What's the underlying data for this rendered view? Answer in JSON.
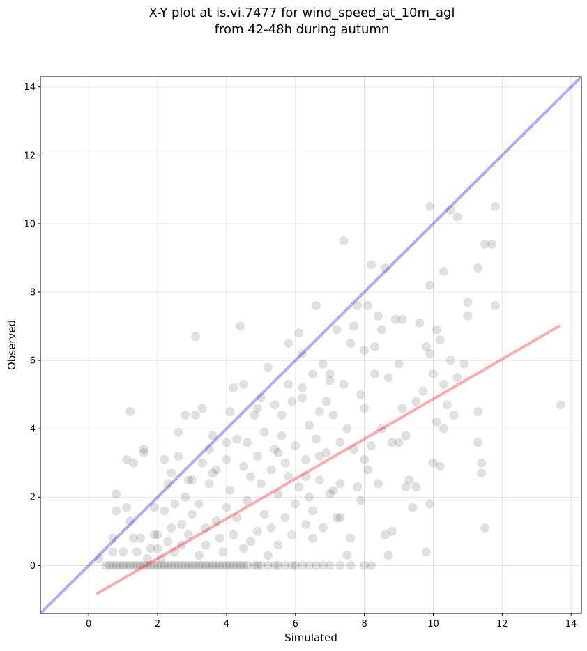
{
  "chart_data": {
    "type": "scatter",
    "title_lines": [
      "X-Y plot at is.vi.7477 for wind_speed_at_10m_agl",
      "from 42-48h during autumn"
    ],
    "xlabel": "Simulated",
    "ylabel": "Observed",
    "xlim": [
      -1.4,
      14.3
    ],
    "ylim": [
      -1.4,
      14.3
    ],
    "xticks": [
      0,
      2,
      4,
      6,
      8,
      10,
      12,
      14
    ],
    "yticks": [
      0,
      2,
      4,
      6,
      8,
      10,
      12,
      14
    ],
    "grid": true,
    "point_color": "#000000",
    "point_opacity": 0.12,
    "one_to_one_line": {
      "color": "#0000ff",
      "opacity": 0.33,
      "x": [
        -1.4,
        14.3
      ],
      "y": [
        -1.4,
        14.3
      ]
    },
    "fit_line": {
      "color": "#ff0000",
      "opacity": 0.33,
      "x": [
        0.25,
        13.65
      ],
      "y": [
        -0.82,
        7.0
      ]
    },
    "points": [
      [
        0.3,
        0.2
      ],
      [
        0.5,
        0
      ],
      [
        0.6,
        0
      ],
      [
        0.7,
        0
      ],
      [
        0.8,
        0
      ],
      [
        0.9,
        0
      ],
      [
        1.0,
        0
      ],
      [
        1.1,
        0
      ],
      [
        1.2,
        0
      ],
      [
        1.3,
        0
      ],
      [
        1.4,
        0
      ],
      [
        1.5,
        0
      ],
      [
        1.6,
        0
      ],
      [
        1.7,
        0
      ],
      [
        1.8,
        0
      ],
      [
        1.9,
        0
      ],
      [
        2.0,
        0
      ],
      [
        2.1,
        0
      ],
      [
        2.2,
        0
      ],
      [
        2.3,
        0
      ],
      [
        2.4,
        0
      ],
      [
        2.5,
        0
      ],
      [
        2.6,
        0
      ],
      [
        2.7,
        0
      ],
      [
        2.8,
        0
      ],
      [
        2.9,
        0
      ],
      [
        3.0,
        0
      ],
      [
        3.1,
        0
      ],
      [
        3.2,
        0
      ],
      [
        3.3,
        0
      ],
      [
        3.4,
        0
      ],
      [
        3.5,
        0
      ],
      [
        3.6,
        0
      ],
      [
        3.7,
        0
      ],
      [
        3.8,
        0
      ],
      [
        3.9,
        0
      ],
      [
        4.0,
        0
      ],
      [
        4.1,
        0
      ],
      [
        4.2,
        0
      ],
      [
        4.3,
        0
      ],
      [
        4.4,
        0
      ],
      [
        4.5,
        0
      ],
      [
        4.6,
        0
      ],
      [
        4.8,
        0
      ],
      [
        4.9,
        0
      ],
      [
        5.0,
        0
      ],
      [
        5.2,
        0
      ],
      [
        5.4,
        0
      ],
      [
        5.5,
        0
      ],
      [
        5.7,
        0
      ],
      [
        5.9,
        0
      ],
      [
        6.0,
        0
      ],
      [
        6.2,
        0
      ],
      [
        6.4,
        0
      ],
      [
        6.6,
        0
      ],
      [
        6.8,
        0
      ],
      [
        7.0,
        0
      ],
      [
        7.3,
        0
      ],
      [
        7.6,
        0
      ],
      [
        8.0,
        0
      ],
      [
        8.2,
        0
      ],
      [
        0.7,
        0.8
      ],
      [
        0.7,
        0.4
      ],
      [
        0.8,
        1.6
      ],
      [
        0.8,
        2.1
      ],
      [
        1.0,
        0.4
      ],
      [
        1.1,
        3.1
      ],
      [
        1.1,
        1.7
      ],
      [
        1.2,
        4.5
      ],
      [
        1.2,
        1.3
      ],
      [
        1.3,
        0.8
      ],
      [
        1.3,
        3.0
      ],
      [
        1.4,
        0.4
      ],
      [
        1.5,
        0.8
      ],
      [
        1.6,
        3.3
      ],
      [
        1.6,
        3.4
      ],
      [
        1.7,
        0.2
      ],
      [
        1.8,
        0.5
      ],
      [
        1.9,
        1.7
      ],
      [
        2.0,
        0.9
      ],
      [
        2.0,
        0.5
      ],
      [
        2.1,
        0.2
      ],
      [
        2.2,
        1.6
      ],
      [
        2.2,
        3.1
      ],
      [
        2.3,
        0.7
      ],
      [
        2.3,
        2.4
      ],
      [
        2.4,
        2.7
      ],
      [
        2.5,
        0.4
      ],
      [
        2.5,
        1.8
      ],
      [
        2.6,
        3.9
      ],
      [
        2.6,
        3.2
      ],
      [
        2.7,
        1.2
      ],
      [
        2.7,
        0.6
      ],
      [
        2.8,
        4.4
      ],
      [
        2.8,
        2.0
      ],
      [
        2.9,
        0.9
      ],
      [
        3.0,
        1.5
      ],
      [
        3.0,
        2.5
      ],
      [
        3.1,
        6.7
      ],
      [
        3.1,
        4.4
      ],
      [
        3.2,
        0.3
      ],
      [
        3.2,
        1.8
      ],
      [
        3.3,
        3.0
      ],
      [
        3.3,
        4.6
      ],
      [
        3.4,
        1.1
      ],
      [
        3.4,
        0.6
      ],
      [
        3.5,
        2.4
      ],
      [
        3.5,
        3.4
      ],
      [
        3.6,
        3.8
      ],
      [
        3.7,
        1.3
      ],
      [
        3.7,
        2.8
      ],
      [
        3.8,
        0.8
      ],
      [
        3.9,
        0.4
      ],
      [
        4.0,
        3.1
      ],
      [
        4.0,
        1.7
      ],
      [
        4.1,
        4.5
      ],
      [
        4.1,
        2.2
      ],
      [
        4.2,
        5.2
      ],
      [
        4.2,
        0.9
      ],
      [
        4.3,
        3.7
      ],
      [
        4.3,
        1.4
      ],
      [
        4.4,
        7.0
      ],
      [
        4.5,
        5.3
      ],
      [
        4.5,
        2.9
      ],
      [
        4.5,
        0.5
      ],
      [
        4.6,
        3.6
      ],
      [
        4.6,
        1.9
      ],
      [
        4.7,
        2.6
      ],
      [
        4.7,
        0.7
      ],
      [
        4.8,
        4.4
      ],
      [
        4.9,
        3.2
      ],
      [
        4.9,
        1.0
      ],
      [
        5.0,
        4.9
      ],
      [
        5.0,
        2.4
      ],
      [
        5.1,
        1.5
      ],
      [
        5.1,
        3.9
      ],
      [
        5.2,
        5.8
      ],
      [
        5.2,
        0.3
      ],
      [
        5.3,
        2.8
      ],
      [
        5.3,
        1.1
      ],
      [
        5.4,
        3.4
      ],
      [
        5.4,
        4.7
      ],
      [
        5.5,
        2.1
      ],
      [
        5.5,
        0.6
      ],
      [
        5.6,
        3.8
      ],
      [
        5.6,
        4.4
      ],
      [
        5.7,
        1.4
      ],
      [
        5.7,
        3.0
      ],
      [
        5.8,
        6.5
      ],
      [
        5.8,
        2.6
      ],
      [
        5.9,
        4.8
      ],
      [
        5.9,
        0.9
      ],
      [
        6.0,
        3.5
      ],
      [
        6.0,
        1.8
      ],
      [
        6.1,
        6.8
      ],
      [
        6.1,
        2.3
      ],
      [
        6.2,
        4.9
      ],
      [
        6.2,
        5.2
      ],
      [
        6.3,
        3.1
      ],
      [
        6.3,
        1.2
      ],
      [
        6.4,
        4.1
      ],
      [
        6.4,
        2.0
      ],
      [
        6.5,
        0.8
      ],
      [
        6.5,
        5.6
      ],
      [
        6.6,
        7.6
      ],
      [
        6.6,
        3.7
      ],
      [
        6.7,
        2.5
      ],
      [
        6.7,
        4.5
      ],
      [
        6.8,
        1.1
      ],
      [
        6.8,
        5.9
      ],
      [
        6.9,
        3.3
      ],
      [
        7.0,
        2.1
      ],
      [
        7.0,
        5.4
      ],
      [
        7.1,
        4.4
      ],
      [
        7.2,
        1.4
      ],
      [
        7.2,
        6.9
      ],
      [
        7.3,
        3.6
      ],
      [
        7.3,
        2.4
      ],
      [
        7.4,
        5.3
      ],
      [
        7.5,
        0.3
      ],
      [
        7.5,
        4.0
      ],
      [
        7.6,
        6.5
      ],
      [
        7.6,
        0.8
      ],
      [
        7.7,
        3.4
      ],
      [
        7.7,
        7.0
      ],
      [
        7.8,
        2.3
      ],
      [
        7.9,
        5.0
      ],
      [
        7.9,
        1.9
      ],
      [
        8.0,
        6.3
      ],
      [
        8.0,
        4.6
      ],
      [
        8.1,
        7.6
      ],
      [
        8.1,
        2.8
      ],
      [
        8.2,
        8.8
      ],
      [
        8.2,
        3.5
      ],
      [
        8.3,
        5.6
      ],
      [
        8.4,
        2.4
      ],
      [
        8.4,
        7.3
      ],
      [
        8.5,
        4.0
      ],
      [
        8.5,
        6.9
      ],
      [
        8.6,
        8.7
      ],
      [
        8.6,
        0.9
      ],
      [
        8.7,
        5.5
      ],
      [
        8.7,
        0.3
      ],
      [
        8.8,
        1.0
      ],
      [
        8.9,
        7.2
      ],
      [
        9.0,
        5.9
      ],
      [
        9.0,
        3.6
      ],
      [
        9.1,
        4.6
      ],
      [
        9.1,
        7.2
      ],
      [
        9.2,
        2.3
      ],
      [
        9.2,
        3.8
      ],
      [
        9.4,
        1.7
      ],
      [
        9.5,
        4.8
      ],
      [
        9.5,
        2.3
      ],
      [
        9.6,
        7.1
      ],
      [
        9.7,
        5.1
      ],
      [
        9.8,
        0.4
      ],
      [
        9.8,
        6.4
      ],
      [
        9.9,
        8.2
      ],
      [
        9.9,
        10.5
      ],
      [
        9.9,
        1.8
      ],
      [
        10.0,
        3.0
      ],
      [
        10.0,
        5.6
      ],
      [
        10.1,
        6.9
      ],
      [
        10.1,
        4.2
      ],
      [
        10.2,
        6.6
      ],
      [
        10.2,
        2.9
      ],
      [
        10.3,
        5.3
      ],
      [
        10.3,
        8.6
      ],
      [
        10.4,
        4.7
      ],
      [
        10.5,
        6.0
      ],
      [
        10.5,
        10.4
      ],
      [
        10.6,
        4.4
      ],
      [
        10.7,
        10.2
      ],
      [
        10.7,
        5.5
      ],
      [
        10.9,
        5.9
      ],
      [
        11.0,
        7.7
      ],
      [
        11.0,
        7.3
      ],
      [
        11.3,
        8.7
      ],
      [
        11.3,
        3.6
      ],
      [
        11.3,
        4.5
      ],
      [
        11.4,
        3.0
      ],
      [
        11.4,
        2.7
      ],
      [
        11.5,
        9.4
      ],
      [
        11.5,
        1.1
      ],
      [
        11.7,
        9.4
      ],
      [
        11.8,
        10.5
      ],
      [
        11.8,
        7.6
      ],
      [
        13.7,
        4.7
      ],
      [
        7.4,
        9.5
      ],
      [
        5.8,
        5.3
      ],
      [
        6.2,
        6.2
      ],
      [
        7.0,
        5.6
      ],
      [
        7.8,
        7.6
      ],
      [
        8.3,
        6.4
      ],
      [
        9.9,
        6.2
      ],
      [
        10.3,
        4.0
      ],
      [
        6.9,
        4.8
      ],
      [
        6.7,
        3.2
      ],
      [
        5.5,
        3.3
      ],
      [
        4.9,
        4.6
      ],
      [
        4.0,
        3.6
      ],
      [
        3.6,
        2.7
      ],
      [
        2.9,
        2.5
      ],
      [
        2.4,
        1.1
      ],
      [
        1.9,
        0.9
      ],
      [
        6.3,
        2.6
      ],
      [
        6.5,
        1.6
      ],
      [
        7.1,
        2.2
      ],
      [
        7.3,
        1.4
      ],
      [
        8.0,
        3.1
      ],
      [
        8.8,
        3.6
      ],
      [
        9.3,
        2.5
      ]
    ]
  }
}
